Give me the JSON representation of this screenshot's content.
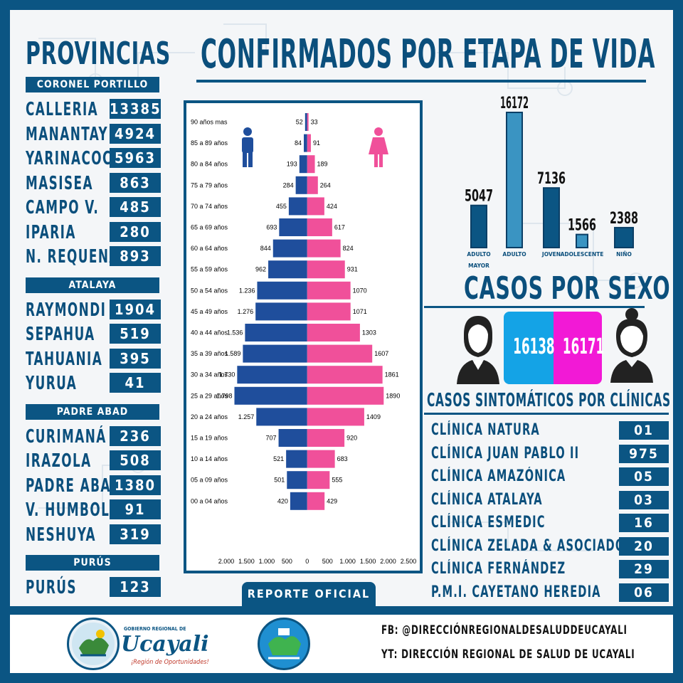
{
  "title": "CONFIRMADOS POR ETAPA DE VIDA",
  "provinces_title": "PROVINCIAS",
  "provinces": [
    {
      "name": "CORONEL PORTILLO",
      "districts": [
        {
          "name": "CALLERIA",
          "value": "13385"
        },
        {
          "name": "MANANTAY",
          "value": "4924"
        },
        {
          "name": "YARINACOCHA",
          "value": "5963"
        },
        {
          "name": "MASISEA",
          "value": "863"
        },
        {
          "name": "CAMPO V.",
          "value": "485"
        },
        {
          "name": "IPARIA",
          "value": "280"
        },
        {
          "name": "N. REQUENA",
          "value": "893"
        }
      ]
    },
    {
      "name": "ATALAYA",
      "districts": [
        {
          "name": "RAYMONDI",
          "value": "1904"
        },
        {
          "name": "SEPAHUA",
          "value": "519"
        },
        {
          "name": "TAHUANIA",
          "value": "395"
        },
        {
          "name": "YURUA",
          "value": "41"
        }
      ]
    },
    {
      "name": "PADRE ABAD",
      "districts": [
        {
          "name": "CURIMANÁ",
          "value": "236"
        },
        {
          "name": "IRAZOLA",
          "value": "508"
        },
        {
          "name": "PADRE ABAD",
          "value": "1380"
        },
        {
          "name": "V. HUMBOLDT",
          "value": "91"
        },
        {
          "name": "NESHUYA",
          "value": "319"
        }
      ]
    },
    {
      "name": "PURÚS",
      "districts": [
        {
          "name": "PURÚS",
          "value": "123"
        }
      ]
    }
  ],
  "report_label": "REPORTE OFICIAL",
  "pyramid": {
    "type": "bar",
    "orientation": "horizontal-population-pyramid",
    "categories": [
      "90 años mas",
      "85 a 89 años",
      "80 a 84 años",
      "75 a 79 años",
      "70 a 74 años",
      "65 a 69 años",
      "60 a 64 años",
      "55 a 59 años",
      "50 a 54 años",
      "45 a 49 años",
      "40 a 44 años",
      "35 a 39 años",
      "30 a 34 años",
      "25 a 29 años",
      "20 a 24 años",
      "15 a 19 años",
      "10 a 14 años",
      "05 a 09 años",
      "00 a 04 años"
    ],
    "series": [
      {
        "values": [
          52,
          84,
          193,
          284,
          455,
          693,
          844,
          962,
          1236,
          1276,
          1536,
          1589,
          1730,
          1798,
          1257,
          707,
          521,
          501,
          420
        ],
        "labels": [
          "52",
          "84",
          "193",
          "284",
          "455",
          "693",
          "844",
          "962",
          "1.236",
          "1.276",
          "1.536",
          "1.589",
          "1.730",
          "1.798",
          "1.257",
          "707",
          "521",
          "501",
          "420"
        ]
      },
      {
        "values": [
          33,
          91,
          189,
          264,
          424,
          617,
          824,
          931,
          1070,
          1071,
          1303,
          1607,
          1861,
          1890,
          1409,
          920,
          683,
          555,
          429
        ],
        "labels": [
          "33",
          "91",
          "189",
          "264",
          "424",
          "617",
          "824",
          "931",
          "1070",
          "1071",
          "1303",
          "1607",
          "1861",
          "1890",
          "1409",
          "920",
          "683",
          "555",
          "429"
        ]
      }
    ],
    "xlim": [
      -2000,
      2500
    ],
    "x_ticks": [
      "2.000",
      "1.500",
      "1.000",
      "500",
      "0",
      "500",
      "1.000",
      "1.500",
      "2.000",
      "2.500"
    ],
    "x_tick_values": [
      -2000,
      -1500,
      -1000,
      -500,
      0,
      500,
      1000,
      1500,
      2000,
      2500
    ],
    "colors": {
      "male": "#1f4e9c",
      "female": "#f0509a"
    }
  },
  "stages": {
    "type": "bar",
    "categories": [
      "ADULTO MAYOR",
      "ADULTO",
      "JOVEN",
      "ADOLESCENTE",
      "NIÑO"
    ],
    "values": [
      5047,
      16172,
      7136,
      1566,
      2388
    ],
    "labels": [
      "5047",
      "16172",
      "7136",
      "1566",
      "2388"
    ]
  },
  "sex": {
    "title": "CASOS POR SEXO",
    "male": "16138",
    "female": "16171",
    "male_color": "#14a3e6",
    "female_color": "#f219d6"
  },
  "clinics": {
    "title": "CASOS SINTOMÁTICOS POR CLÍNICAS",
    "items": [
      {
        "name": "CLÍNICA NATURA",
        "value": "01"
      },
      {
        "name": "CLÍNICA JUAN PABLO II",
        "value": "975"
      },
      {
        "name": "CLÍNICA AMAZÓNICA",
        "value": "05"
      },
      {
        "name": "CLÍNICA ATALAYA",
        "value": "03"
      },
      {
        "name": "CLÍNICA ESMEDIC",
        "value": "16"
      },
      {
        "name": "CLÍNICA ZELADA & ASOCIADOS",
        "value": "20"
      },
      {
        "name": "CLÍNICA FERNÁNDEZ",
        "value": "29"
      },
      {
        "name": "P.M.I. CAYETANO HEREDIA",
        "value": "06"
      }
    ]
  },
  "footer": {
    "logo1_name": "Ucayali",
    "logo1_small": "GOBIERNO REGIONAL DE",
    "logo1_tag": "¡Región de Oportunidades!",
    "fb": "FB: @DIRECCIÓNREGIONALDESALUDDEUCAYALI",
    "yt": "YT: DIRECCIÓN REGIONAL DE SALUD DE UCAYALI"
  },
  "colors": {
    "brand": "#0b5583",
    "male": "#1f4e9c",
    "female": "#f0509a"
  }
}
